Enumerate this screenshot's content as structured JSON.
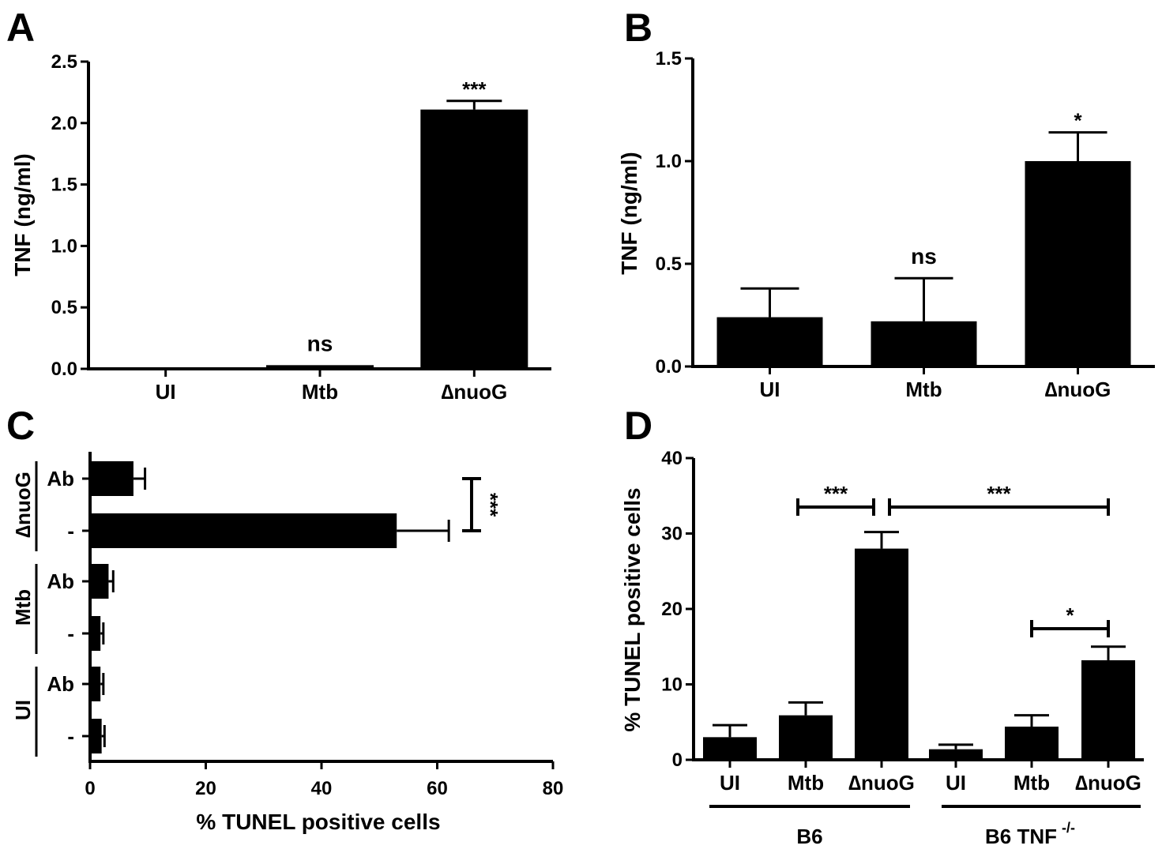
{
  "colors": {
    "bar": "#000000",
    "background": "#ffffff"
  },
  "chart_data": [
    {
      "panel": "A",
      "type": "bar",
      "categories": [
        "UI",
        "Mtb",
        "∆nuoG"
      ],
      "values": [
        0.0,
        0.03,
        2.11
      ],
      "errors": [
        0.0,
        0.0,
        0.07
      ],
      "annotations": [
        "",
        "ns",
        "***"
      ],
      "ylabel": "TNF (ng/ml)",
      "ylim": [
        0,
        2.5
      ],
      "yticks": [
        0.0,
        0.5,
        1.0,
        1.5,
        2.0,
        2.5
      ],
      "ytick_labels": [
        "0.0",
        "0.5",
        "1.0",
        "1.5",
        "2.0",
        "2.5"
      ]
    },
    {
      "panel": "B",
      "type": "bar",
      "categories": [
        "UI",
        "Mtb",
        "∆nuoG"
      ],
      "values": [
        0.24,
        0.22,
        1.0
      ],
      "errors": [
        0.14,
        0.21,
        0.14
      ],
      "annotations": [
        "",
        "ns",
        "*"
      ],
      "ylabel": "TNF (ng/ml)",
      "ylim": [
        0,
        1.5
      ],
      "yticks": [
        0.0,
        0.5,
        1.0,
        1.5
      ],
      "ytick_labels": [
        "0.0",
        "0.5",
        "1.0",
        "1.5"
      ]
    },
    {
      "panel": "C",
      "type": "bar",
      "orientation": "horizontal",
      "groups": [
        {
          "name": "∆nuoG",
          "rows": [
            {
              "label": "Ab",
              "value": 7.5,
              "error": 2.0
            },
            {
              "label": "-",
              "value": 53,
              "error": 9.0
            }
          ]
        },
        {
          "name": "Mtb",
          "rows": [
            {
              "label": "Ab",
              "value": 3.2,
              "error": 0.8
            },
            {
              "label": "-",
              "value": 1.8,
              "error": 0.5
            }
          ]
        },
        {
          "name": "UI",
          "rows": [
            {
              "label": "Ab",
              "value": 1.8,
              "error": 0.5
            },
            {
              "label": "-",
              "value": 2.0,
              "error": 0.5
            }
          ]
        }
      ],
      "significance": [
        {
          "between": "∆nuoG Ab vs ∆nuoG -",
          "label": "***"
        }
      ],
      "xlabel": "% TUNEL positive cells",
      "xlim": [
        0,
        80
      ],
      "xticks": [
        0,
        20,
        40,
        60,
        80
      ],
      "xtick_labels": [
        "0",
        "20",
        "40",
        "60",
        "80"
      ]
    },
    {
      "panel": "D",
      "type": "bar",
      "categories": [
        "UI",
        "Mtb",
        "∆nuoG",
        "UI",
        "Mtb",
        "∆nuoG"
      ],
      "values": [
        3.0,
        5.9,
        28.0,
        1.4,
        4.4,
        13.2
      ],
      "errors": [
        1.6,
        1.7,
        2.2,
        0.6,
        1.5,
        1.8
      ],
      "groups": [
        {
          "name": "B6",
          "span": [
            0,
            2
          ]
        },
        {
          "name": "B6 TNF",
          "superscript": "-/-",
          "span": [
            3,
            5
          ]
        }
      ],
      "significance": [
        {
          "from": 1,
          "to": 2,
          "label": "***"
        },
        {
          "from": 2,
          "to": 5,
          "label": "***"
        },
        {
          "from": 4,
          "to": 5,
          "label": "*"
        }
      ],
      "ylabel": "% TUNEL positive cells",
      "ylim": [
        0,
        40
      ],
      "yticks": [
        0,
        10,
        20,
        30,
        40
      ],
      "ytick_labels": [
        "0",
        "10",
        "20",
        "30",
        "40"
      ]
    }
  ]
}
